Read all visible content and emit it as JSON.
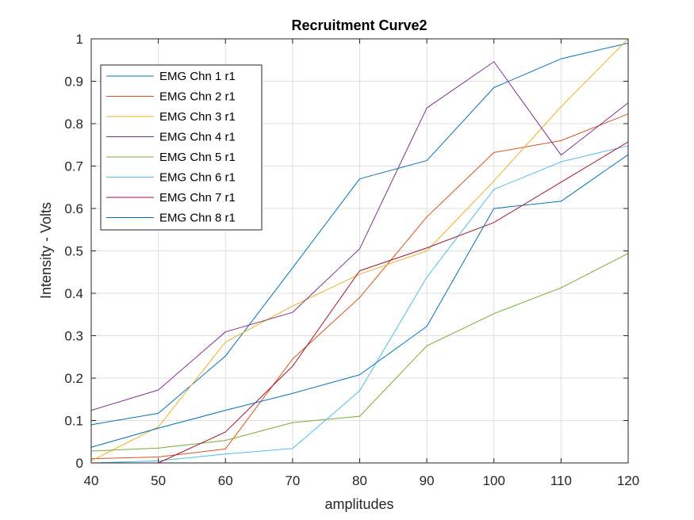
{
  "chart_data": {
    "type": "line",
    "title": "Recruitment Curve2",
    "xlabel": "amplitudes",
    "ylabel": "Intensity - Volts",
    "xlim": [
      40,
      120
    ],
    "ylim": [
      0,
      1
    ],
    "x": [
      40,
      50,
      60,
      70,
      80,
      90,
      100,
      110,
      120
    ],
    "xticks": [
      "40",
      "50",
      "60",
      "70",
      "80",
      "90",
      "100",
      "110",
      "120"
    ],
    "yticks": [
      "0",
      "0.1",
      "0.2",
      "0.3",
      "0.4",
      "0.5",
      "0.6",
      "0.7",
      "0.8",
      "0.9",
      "1"
    ],
    "grid": true,
    "legend_position": "top-left",
    "series": [
      {
        "name": "EMG Chn 1 r1",
        "color": "#0072BD",
        "values": [
          0.09,
          0.117,
          0.252,
          0.46,
          0.67,
          0.713,
          0.885,
          0.953,
          0.99
        ]
      },
      {
        "name": "EMG Chn 2 r1",
        "color": "#D95319",
        "values": [
          0.01,
          0.014,
          0.033,
          0.245,
          0.39,
          0.58,
          0.732,
          0.76,
          0.823
        ]
      },
      {
        "name": "EMG Chn 3 r1",
        "color": "#EDB120",
        "values": [
          0.005,
          0.085,
          0.285,
          0.37,
          0.445,
          0.5,
          0.665,
          0.84,
          1.0
        ]
      },
      {
        "name": "EMG Chn 4 r1",
        "color": "#7E2F8E",
        "values": [
          0.124,
          0.172,
          0.309,
          0.355,
          0.505,
          0.837,
          0.946,
          0.726,
          0.849
        ]
      },
      {
        "name": "EMG Chn 5 r1",
        "color": "#77AC30",
        "values": [
          0.028,
          0.035,
          0.053,
          0.095,
          0.11,
          0.276,
          0.352,
          0.413,
          0.494
        ]
      },
      {
        "name": "EMG Chn 6 r1",
        "color": "#4DBEEE",
        "values": [
          0.0,
          0.005,
          0.021,
          0.034,
          0.17,
          0.438,
          0.645,
          0.71,
          0.748
        ]
      },
      {
        "name": "EMG Chn 7 r1",
        "color": "#A2142F",
        "values": [
          0.0,
          0.0,
          0.073,
          0.228,
          0.453,
          0.507,
          0.567,
          0.662,
          0.757
        ]
      },
      {
        "name": "EMG Chn 8 r1",
        "color": "#0072BD",
        "values": [
          0.037,
          0.082,
          0.124,
          0.164,
          0.208,
          0.322,
          0.6,
          0.617,
          0.727
        ]
      }
    ]
  }
}
